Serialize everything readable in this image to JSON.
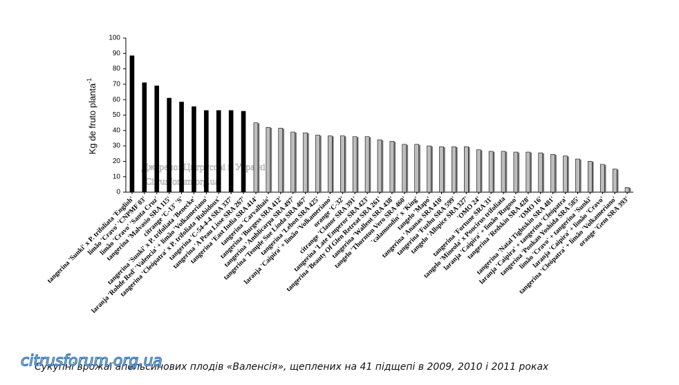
{
  "chart_data": {
    "type": "bar",
    "y_label": "Kg  de  fruto planta",
    "y_label_sup": "-1",
    "categories": [
      "tangerina 'Sunki' x P. trifoliata 'English'",
      "limão 'Cravo' 'CNPMF 03'",
      "limão 'Cravo' 'Santa Cruz'",
      "tangerina 'Malvasio SRA 115'",
      "citrange 'C-13' 'S'",
      "tangerina 'Sunki' x P. trifoliata 'Benecke'",
      "laranja 'Rohde Red' 'Valencia' + limão 'Volkameriano'",
      "tangerina 'Cleópatra' x P. trifoliata 'Rubidoux'",
      "tangerina 'C-54-4-4 SRA 337'",
      "tangerina 'A Peau Lisse SRA 267'",
      "tangerina 'East India SRA 414'",
      "tangerina 'Carvalhais'",
      "tangerina 'Burgess SRA 412'",
      "tangerina 'Amblicarpa SRA 497'",
      "tangerina 'Temple Sue Linda SRA 467'",
      "tangerina 'Lebon SRA 425'",
      "laranja 'Caipira' + limão 'Volkameriano'",
      "orange 'C-32'",
      "citrange 'Clanor SRA 391'",
      "tangerina 'Late Emperor SRA 423'",
      "tangerina 'Beauty Of Glen Retreat SRA 261'",
      "tangerina 'Wallent SRA 438'",
      "tangelo 'Thornton Vero SRA 460'",
      "'calamondin' x 'King'",
      "tangelo 'Mapo'",
      "tangerina 'Ananas SRA 410'",
      "tangerina 'Fuzhu SRA 599'",
      "tangelo 'Allspice SRA 327'",
      "'OMO 24'",
      "tangerina 'Fortune SRA 31'",
      "tangelo 'Mineola' x Poncirus trifoliata",
      "laranja 'Caipira' + limão 'Rugoso'",
      "tangerina 'Redskin SRA 428'",
      "'OMO 16'",
      "tangerina 'Natal Tightskin SRA 481'",
      "laranja 'Caipira' + tangerina 'Cleópatra'",
      "tangerina 'Ponkan Yoshida SRA 585'",
      "limão 'Cravo' + tangerina 'Sunki'",
      "laranja 'Caipira' + limão 'Cravo'",
      "tangerina 'Cleópatra' + limão 'Volkameriano'",
      "orange 'Gem SRA 393'"
    ],
    "values": [
      88.5,
      71,
      69,
      61,
      58.5,
      55.5,
      53,
      53,
      53,
      52.5,
      45,
      42,
      41.5,
      39,
      38.5,
      37,
      36.5,
      36.5,
      36,
      36,
      34,
      33,
      31,
      31,
      30,
      29.5,
      29.5,
      29.5,
      27.5,
      26.5,
      26.5,
      26,
      26,
      25.5,
      24.5,
      23.5,
      21.5,
      20,
      18,
      15,
      3
    ],
    "colors": [
      "#000000",
      "#000000",
      "#000000",
      "#000000",
      "#000000",
      "#000000",
      "#000000",
      "#000000",
      "#000000",
      "#000000",
      "#bdbdbd",
      "#bdbdbd",
      "#bdbdbd",
      "#bdbdbd",
      "#bdbdbd",
      "#bdbdbd",
      "#bdbdbd",
      "#bdbdbd",
      "#bdbdbd",
      "#bdbdbd",
      "#bdbdbd",
      "#bdbdbd",
      "#bdbdbd",
      "#bdbdbd",
      "#bdbdbd",
      "#bdbdbd",
      "#bdbdbd",
      "#bdbdbd",
      "#bdbdbd",
      "#bdbdbd",
      "#bdbdbd",
      "#bdbdbd",
      "#bdbdbd",
      "#bdbdbd",
      "#bdbdbd",
      "#bdbdbd",
      "#bdbdbd",
      "#bdbdbd",
      "#bdbdbd",
      "#bdbdbd",
      "#bdbdbd"
    ],
    "ylim": [
      0,
      100
    ],
    "yticks": [
      0,
      10,
      20,
      30,
      40,
      50,
      60,
      70,
      80,
      90,
      100
    ],
    "watermark": [
      "Джерело: Цитрусові в Україні",
      "Citrusforum.org.ua"
    ],
    "caption": "Сукупні врожаї апельсинових плодів «Валенсія», щеплених на 41 підщепі в 2009, 2010 і 2011 роках",
    "logo": "citrusforum.org.ua"
  }
}
